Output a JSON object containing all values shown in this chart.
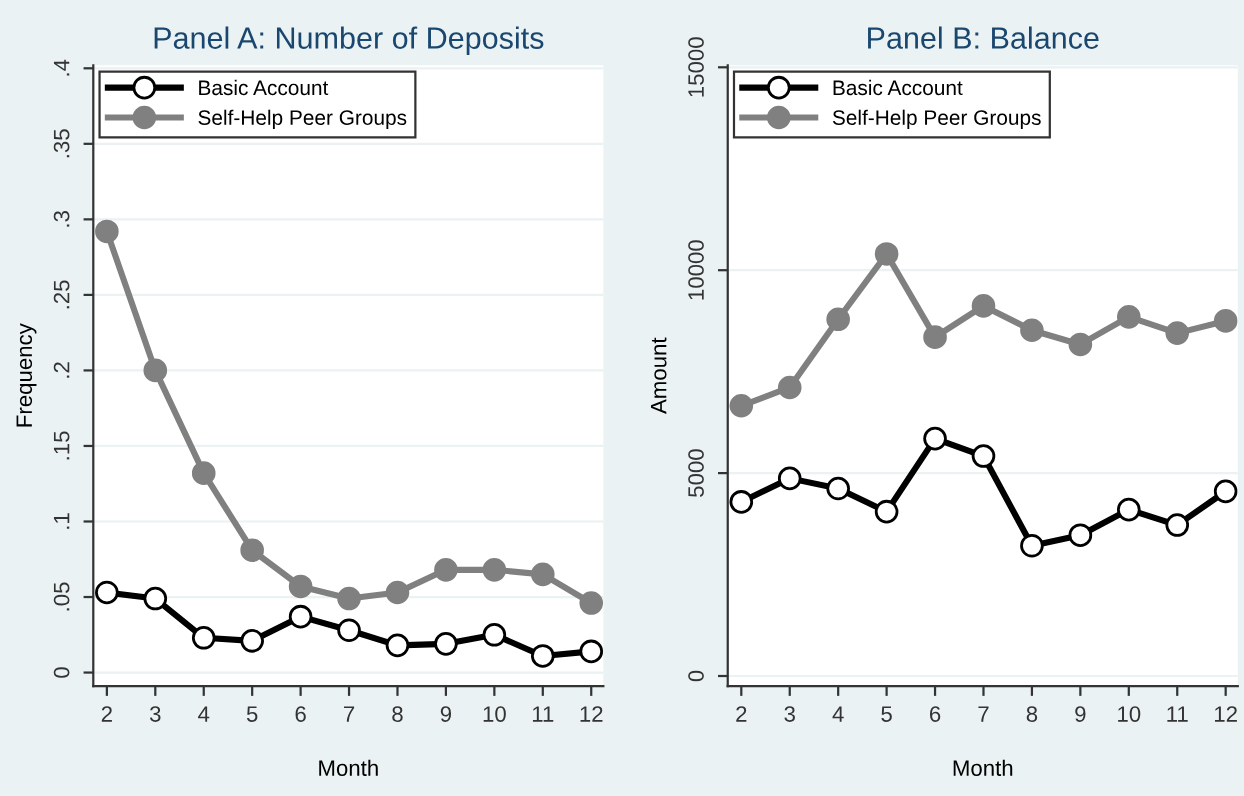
{
  "chart_data": [
    {
      "type": "line",
      "title": "Panel A: Number of Deposits",
      "xlabel": "Month",
      "ylabel": "Frequency",
      "x": [
        2,
        3,
        4,
        5,
        6,
        7,
        8,
        9,
        10,
        11,
        12
      ],
      "series": [
        {
          "name": "Basic Account",
          "color": "#000000",
          "values": [
            0.053,
            0.049,
            0.023,
            0.021,
            0.037,
            0.028,
            0.018,
            0.019,
            0.025,
            0.011,
            0.014
          ]
        },
        {
          "name": "Self-Help Peer Groups",
          "color": "#808080",
          "values": [
            0.292,
            0.2,
            0.132,
            0.081,
            0.057,
            0.049,
            0.053,
            0.068,
            0.068,
            0.065,
            0.046
          ]
        }
      ],
      "xlim": [
        1.72,
        12.25
      ],
      "xticks": [
        2,
        3,
        4,
        5,
        6,
        7,
        8,
        9,
        10,
        11,
        12
      ],
      "ylim": [
        -0.009,
        0.402
      ],
      "yticks": [
        0,
        {
          "value": 0.05,
          "label": ".05"
        },
        {
          "value": 0.1,
          "label": ".1"
        },
        {
          "value": 0.15,
          "label": ".15"
        },
        {
          "value": 0.2,
          "label": ".2"
        },
        {
          "value": 0.25,
          "label": ".25"
        },
        {
          "value": 0.3,
          "label": ".3"
        },
        {
          "value": 0.35,
          "label": ".35"
        },
        {
          "value": 0.4,
          "label": ".4"
        }
      ],
      "grid": "y",
      "legend": "top left",
      "marker": "circle",
      "line_style": "solid"
    },
    {
      "type": "line",
      "title": "Panel B: Balance",
      "xlabel": "Month",
      "ylabel": "Amount",
      "x": [
        2,
        3,
        4,
        5,
        6,
        7,
        8,
        9,
        10,
        11,
        12
      ],
      "series": [
        {
          "name": "Basic Account",
          "color": "#000000",
          "values": [
            4290,
            4870,
            4620,
            4050,
            5850,
            5420,
            3210,
            3470,
            4100,
            3720,
            4550
          ]
        },
        {
          "name": "Self-Help Peer Groups",
          "color": "#808080",
          "values": [
            6660,
            7110,
            8790,
            10400,
            8350,
            9120,
            8520,
            8170,
            8850,
            8450,
            8750
          ]
        }
      ],
      "xlim": [
        1.72,
        12.25
      ],
      "xticks": [
        2,
        3,
        4,
        5,
        6,
        7,
        8,
        9,
        10,
        11,
        12
      ],
      "ylim": [
        -250,
        15050
      ],
      "yticks": [
        0,
        5000,
        10000,
        15000
      ],
      "grid": "y",
      "legend": "top left",
      "marker": "circle",
      "line_style": "solid"
    }
  ]
}
